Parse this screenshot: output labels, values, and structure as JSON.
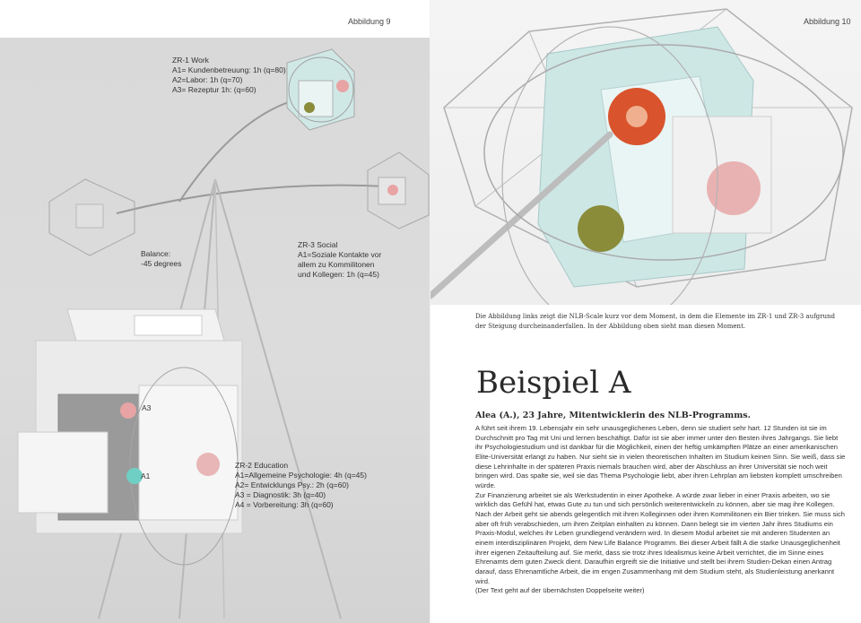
{
  "left_page": {
    "figure_label": "Abbildung 9",
    "annotations": {
      "work": "ZR-1 Work\nA1= Kundenbetreuung: 1h (q=80)\nA2=Labor: 1h (q=70)\nA3= Rezeptur 1h: (q=60)",
      "balance": "Balance:\n-45 degrees",
      "social": "ZR-3 Social\nA1=Soziale Kontakte vor\nallem zu Kommilitonen\nund Kollegen: 1h (q=45)",
      "education": "ZR-2 Education\nA1=Allgemeine Psychologie: 4h (q=45)\nA2= Entwicklungs Psy.: 2h (q=60)\nA3 = Diagnostik: 3h (q=40)\nA4 = Vorbereitung: 3h (q=60)",
      "marker_a3": "A3",
      "marker_a1": "A1"
    }
  },
  "right_page": {
    "figure_label": "Abbildung 10",
    "caption": "Die Abbildung links zeigt die NLB-Scale kurz vor dem Moment, in dem die Elemente im ZR-1 und ZR-3 aufgrund der Steigung durcheinanderfallen. In der Abbildung oben sieht man diesen Moment.",
    "title": "Beispiel A",
    "subtitle": "Alea (A.), 23 Jahre, Mitentwicklerin des NLB-Programms.",
    "paragraphs": [
      "A führt seit ihrem 19. Lebensjahr ein sehr unausgeglichenes Leben, denn sie studiert sehr hart. 12 Stunden ist sie im Durchschnitt pro Tag mit Uni und lernen beschäftigt. Dafür ist sie aber immer unter den Besten ihres Jahrgangs. Sie liebt ihr Psychologiestudium und ist dankbar für die Möglichkeit, einen der heftig umkämpften Plätze an einer amerikanischen Elite-Universität erlangt zu haben. Nur sieht sie in vielen theoretischen Inhalten im Studium keinen Sinn. Sie weiß, dass sie diese Lehrinhalte in der späteren Praxis niemals brauchen wird, aber der Abschluss an ihrer Universität sie noch weit bringen wird. Das spalte sie, weil sie das Thema Psychologie liebt, aber ihren Lehrplan am liebsten komplett umschreiben würde.",
      "Zur Finanzierung arbeitet sie als Werkstudentin in einer Apotheke. A würde zwar lieber in einer Praxis arbeiten, wo sie wirklich das Gefühl hat, etwas Gute zu tun und sich persönlich weiterentwickeln zu können, aber sie mag ihre Kollegen. Nach der Arbeit geht sie abends gelegentlich mit ihren Kolleginnen oder ihren Kommilitonen ein Bier trinken. Sie muss sich aber oft früh verabschieden, um ihren Zeitplan einhalten zu können. Dann belegt sie im vierten Jahr ihres Studiums ein Praxis-Modul, welches ihr Leben grundlegend verändern wird. In diesem Modul arbeitet sie mit anderen Studenten an einem interdisziplinären Projekt, dem New Life Balance Programm. Bei dieser Arbeit fällt A die starke Unausgeglichenheit ihrer eigenen Zeitaufteilung auf. Sie merkt, dass sie trotz ihres Idealismus keine Arbeit verrichtet, die im Sinne eines Ehrenamts dem guten Zweck dient. Daraufhin ergreift sie die Initiative und stellt bei ihrem Studien-Dekan einen Antrag darauf, dass Ehrenamtliche Arbeit, die im engen Zusammenhang mit dem Studium steht, als Studienleistung anerkannt wird.",
      "(Der Text geht auf der übernächsten Doppelseite weiter)"
    ]
  },
  "colors": {
    "left_background": "#d9d9d9",
    "accent_orange": "#d9532c",
    "accent_teal": "#9fd1cf",
    "accent_pink": "#e8a4a4",
    "accent_olive": "#8a8c3a"
  }
}
